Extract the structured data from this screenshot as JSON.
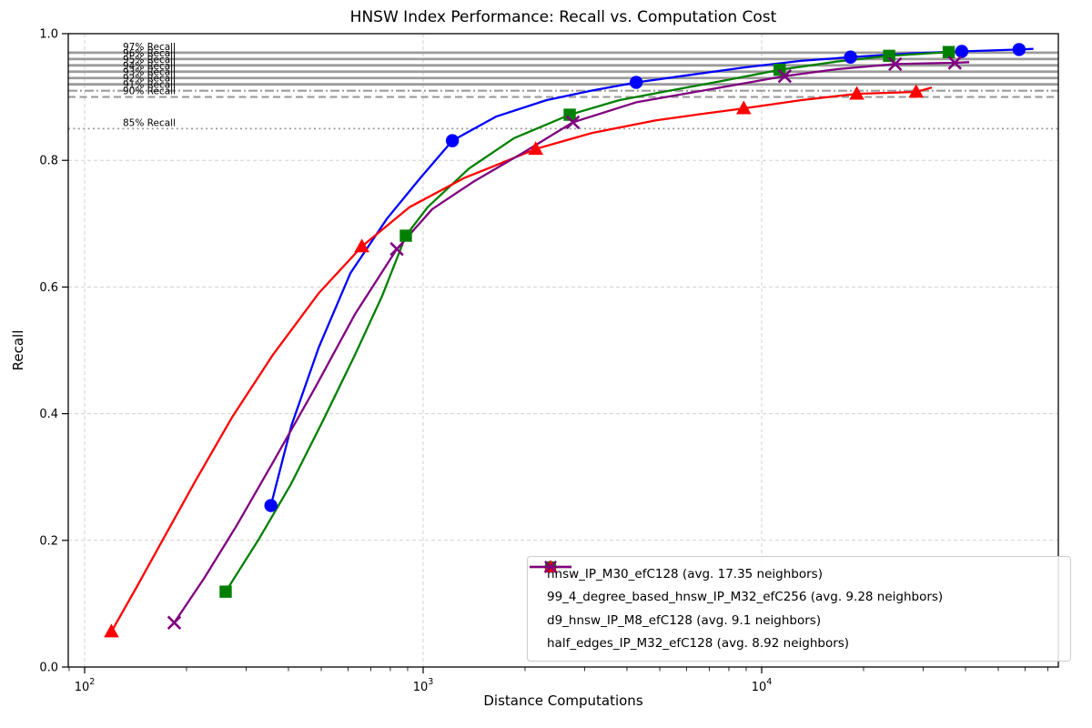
{
  "title": "HNSW Index Performance: Recall vs. Computation Cost",
  "chart_data": {
    "type": "line",
    "title": "HNSW Index Performance: Recall vs. Computation Cost",
    "xlabel": "Distance Computations",
    "ylabel": "Recall",
    "x_scale": "log",
    "xlim": [
      89,
      75000
    ],
    "ylim": [
      0.0,
      1.0
    ],
    "grid": true,
    "grid_color": "#c9c9c9",
    "reference_color": "#8a8a8a",
    "legend_position": "lower right",
    "xticks": [
      {
        "value": 100,
        "base": "10",
        "exp": "2"
      },
      {
        "value": 1000,
        "base": "10",
        "exp": "3"
      },
      {
        "value": 10000,
        "base": "10",
        "exp": "4"
      }
    ],
    "minor_xticks": [
      90,
      200,
      300,
      400,
      500,
      600,
      700,
      800,
      900,
      2000,
      3000,
      4000,
      5000,
      6000,
      7000,
      8000,
      9000,
      20000,
      30000,
      40000,
      50000,
      60000,
      70000
    ],
    "yticks": [
      {
        "value": 0.0,
        "label": "0.0"
      },
      {
        "value": 0.2,
        "label": "0.2"
      },
      {
        "value": 0.4,
        "label": "0.4"
      },
      {
        "value": 0.6,
        "label": "0.6"
      },
      {
        "value": 0.8,
        "label": "0.8"
      },
      {
        "value": 1.0,
        "label": "1.0"
      }
    ],
    "reference_lines": [
      {
        "recall": 0.97,
        "style": "solid",
        "label": "97% Recall"
      },
      {
        "recall": 0.96,
        "style": "solid",
        "label": "96% Recall"
      },
      {
        "recall": 0.95,
        "style": "solid",
        "label": "95% Recall"
      },
      {
        "recall": 0.94,
        "style": "solid",
        "label": "94% Recall"
      },
      {
        "recall": 0.93,
        "style": "solid",
        "label": "93% Recall"
      },
      {
        "recall": 0.92,
        "style": "solid",
        "label": "92% Recall"
      },
      {
        "recall": 0.91,
        "style": "dashdot",
        "label": "91% Recall"
      },
      {
        "recall": 0.9,
        "style": "dashed",
        "label": "90% Recall"
      },
      {
        "recall": 0.85,
        "style": "dotted",
        "label": "85% Recall"
      }
    ],
    "series": [
      {
        "id": "hnsw-ip-m30-efc128",
        "name": "hnsw_IP_M30_efC128 (avg. 17.35 neighbors)",
        "color": "#0000ff",
        "marker": "circle",
        "markers": [
          [
            355,
            0.255
          ],
          [
            1220,
            0.831
          ],
          [
            4260,
            0.923
          ],
          [
            18300,
            0.963
          ],
          [
            39000,
            0.972
          ],
          [
            57600,
            0.975
          ]
        ],
        "path": [
          [
            355,
            0.255
          ],
          [
            408,
            0.381
          ],
          [
            491,
            0.504
          ],
          [
            610,
            0.622
          ],
          [
            782,
            0.708
          ],
          [
            984,
            0.773
          ],
          [
            1220,
            0.831
          ],
          [
            1640,
            0.869
          ],
          [
            2310,
            0.895
          ],
          [
            3140,
            0.91
          ],
          [
            4260,
            0.923
          ],
          [
            6180,
            0.935
          ],
          [
            8990,
            0.947
          ],
          [
            13050,
            0.957
          ],
          [
            18300,
            0.963
          ],
          [
            27500,
            0.969
          ],
          [
            39000,
            0.972
          ],
          [
            57600,
            0.975
          ],
          [
            63500,
            0.976
          ]
        ]
      },
      {
        "id": "99-4-degree-based-hnsw-ip-m32-efc256",
        "name": "99_4_degree_based_hnsw_IP_M32_efC256 (avg. 9.28 neighbors)",
        "color": "#008000",
        "marker": "square",
        "markers": [
          [
            261,
            0.119
          ],
          [
            889,
            0.681
          ],
          [
            2710,
            0.872
          ],
          [
            11300,
            0.943
          ],
          [
            23800,
            0.965
          ],
          [
            35700,
            0.971
          ]
        ],
        "path": [
          [
            261,
            0.119
          ],
          [
            328,
            0.203
          ],
          [
            407,
            0.289
          ],
          [
            506,
            0.389
          ],
          [
            629,
            0.493
          ],
          [
            757,
            0.586
          ],
          [
            889,
            0.681
          ],
          [
            1031,
            0.726
          ],
          [
            1366,
            0.787
          ],
          [
            1856,
            0.835
          ],
          [
            2710,
            0.872
          ],
          [
            3790,
            0.895
          ],
          [
            5480,
            0.911
          ],
          [
            7950,
            0.927
          ],
          [
            11300,
            0.943
          ],
          [
            16700,
            0.956
          ],
          [
            23800,
            0.965
          ],
          [
            35700,
            0.971
          ],
          [
            39300,
            0.972
          ]
        ]
      },
      {
        "id": "d9-hnsw-ip-m8-efc128",
        "name": "d9_hnsw_IP_M8_efC128 (avg. 9.1 neighbors)",
        "color": "#ff0000",
        "marker": "triangle",
        "markers": [
          [
            120,
            0.056
          ],
          [
            659,
            0.664
          ],
          [
            2150,
            0.818
          ],
          [
            8850,
            0.882
          ],
          [
            19100,
            0.905
          ],
          [
            28600,
            0.908
          ]
        ],
        "path": [
          [
            120,
            0.056
          ],
          [
            142,
            0.125
          ],
          [
            171,
            0.203
          ],
          [
            213,
            0.295
          ],
          [
            273,
            0.395
          ],
          [
            360,
            0.493
          ],
          [
            491,
            0.59
          ],
          [
            659,
            0.664
          ],
          [
            911,
            0.726
          ],
          [
            1320,
            0.772
          ],
          [
            1690,
            0.795
          ],
          [
            2150,
            0.818
          ],
          [
            3140,
            0.843
          ],
          [
            4850,
            0.863
          ],
          [
            6600,
            0.873
          ],
          [
            8850,
            0.882
          ],
          [
            13050,
            0.895
          ],
          [
            19100,
            0.905
          ],
          [
            28600,
            0.908
          ],
          [
            31800,
            0.915
          ]
        ]
      },
      {
        "id": "half-edges-ip-m32-efc128",
        "name": "half_edges_IP_M32_efC128 (avg. 8.92 neighbors)",
        "color": "#800080",
        "marker": "x",
        "markers": [
          [
            184,
            0.07
          ],
          [
            836,
            0.66
          ],
          [
            2770,
            0.86
          ],
          [
            11700,
            0.933
          ],
          [
            24800,
            0.952
          ],
          [
            37200,
            0.954
          ]
        ],
        "path": [
          [
            184,
            0.07
          ],
          [
            226,
            0.141
          ],
          [
            281,
            0.223
          ],
          [
            360,
            0.323
          ],
          [
            476,
            0.438
          ],
          [
            629,
            0.557
          ],
          [
            836,
            0.66
          ],
          [
            1064,
            0.723
          ],
          [
            1405,
            0.766
          ],
          [
            1976,
            0.812
          ],
          [
            2770,
            0.86
          ],
          [
            4280,
            0.892
          ],
          [
            7950,
            0.917
          ],
          [
            11700,
            0.933
          ],
          [
            16700,
            0.944
          ],
          [
            24800,
            0.952
          ],
          [
            37200,
            0.954
          ],
          [
            41000,
            0.955
          ]
        ]
      }
    ]
  }
}
